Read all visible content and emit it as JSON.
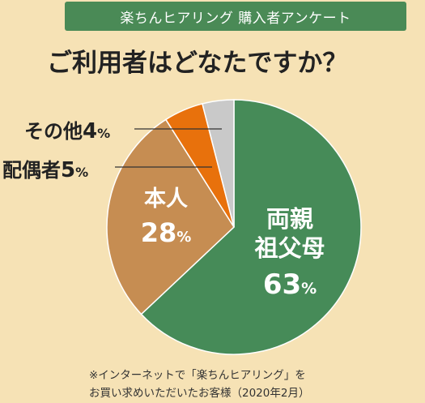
{
  "header": {
    "banner": "楽ちんヒアリング 購入者アンケート",
    "question": "ご利用者はどなたですか？"
  },
  "chart_data": {
    "type": "pie",
    "title": "ご利用者はどなたですか？",
    "slices": [
      {
        "label": "両親祖父母",
        "label_lines": [
          "両親",
          "祖父母"
        ],
        "value": 63,
        "color": "#468b58"
      },
      {
        "label": "本人",
        "label_lines": [
          "本人"
        ],
        "value": 28,
        "color": "#c68d52"
      },
      {
        "label": "配偶者",
        "label_lines": [
          "配偶者"
        ],
        "value": 5,
        "color": "#e8710c"
      },
      {
        "label": "その他",
        "label_lines": [
          "その他"
        ],
        "value": 4,
        "color": "#c9c9c9"
      }
    ],
    "unit": "%"
  },
  "footnote": {
    "line1": "※インターネットで「楽ちんヒアリング」を",
    "line2": "お買い求めいただいたお客様（2020年2月）"
  }
}
